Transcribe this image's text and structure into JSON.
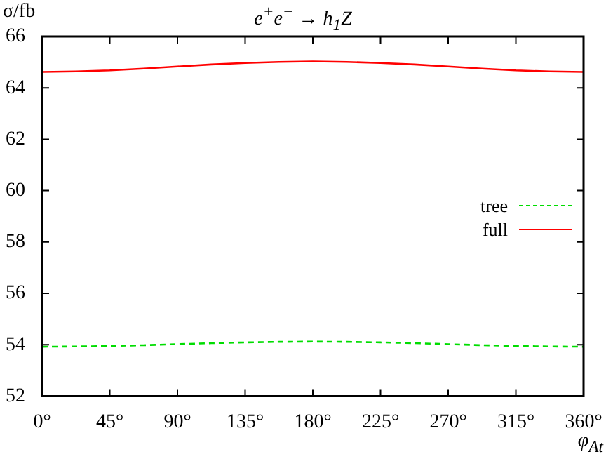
{
  "chart_data": {
    "type": "line",
    "title": "e$^{+}$e$^{−}$ → h$_{1}$Z",
    "xlabel": "φ$_{At}$",
    "ylabel": "σ/fb",
    "x": [
      0,
      22.5,
      45,
      67.5,
      90,
      112.5,
      135,
      157.5,
      180,
      202.5,
      225,
      247.5,
      270,
      292.5,
      315,
      337.5,
      360
    ],
    "series": [
      {
        "name": "tree",
        "color": "#00dd00",
        "line_style": "dashed",
        "values": [
          53.92,
          53.93,
          53.95,
          53.98,
          54.02,
          54.06,
          54.09,
          54.11,
          54.12,
          54.11,
          54.09,
          54.06,
          54.02,
          53.98,
          53.95,
          53.93,
          53.92
        ]
      },
      {
        "name": "full",
        "color": "#ff0000",
        "line_style": "solid",
        "values": [
          64.62,
          64.64,
          64.68,
          64.75,
          64.83,
          64.91,
          64.97,
          65.01,
          65.03,
          65.01,
          64.97,
          64.91,
          64.83,
          64.75,
          64.68,
          64.64,
          64.62
        ]
      }
    ],
    "xlim": [
      0,
      360
    ],
    "xticks": [
      {
        "value": 0,
        "label": "0°"
      },
      {
        "value": 45,
        "label": "45°"
      },
      {
        "value": 90,
        "label": "90°"
      },
      {
        "value": 135,
        "label": "135°"
      },
      {
        "value": 180,
        "label": "180°"
      },
      {
        "value": 225,
        "label": "225°"
      },
      {
        "value": 270,
        "label": "270°"
      },
      {
        "value": 315,
        "label": "315°"
      },
      {
        "value": 360,
        "label": "360°"
      }
    ],
    "ylim": [
      52,
      66
    ],
    "yticks": [
      52,
      54,
      56,
      58,
      60,
      62,
      64,
      66
    ],
    "grid": false,
    "legend": "right",
    "marker": "none"
  }
}
